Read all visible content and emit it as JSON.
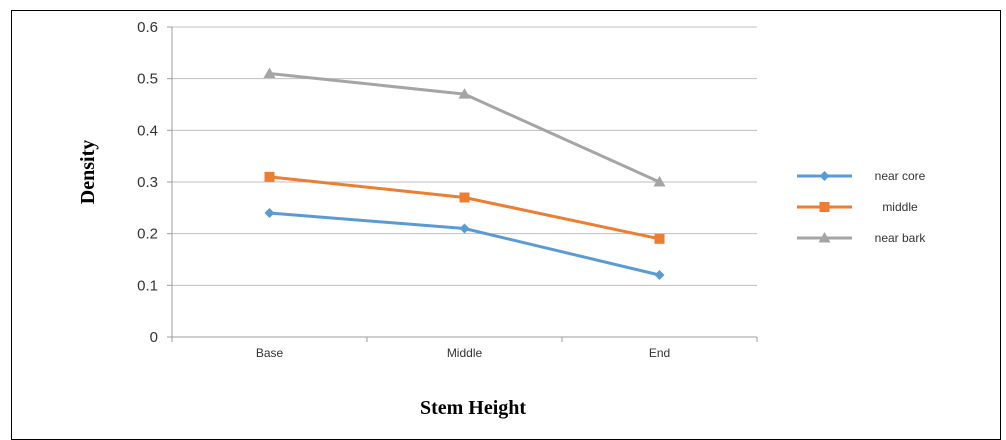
{
  "chart_data": {
    "type": "line",
    "categories": [
      "Base",
      "Middle",
      "End"
    ],
    "series": [
      {
        "name": "near core",
        "values": [
          0.24,
          0.21,
          0.12
        ],
        "color": "#5B9BD5",
        "marker": "diamond"
      },
      {
        "name": "middle",
        "values": [
          0.31,
          0.27,
          0.19
        ],
        "color": "#ED7D31",
        "marker": "square"
      },
      {
        "name": "near bark",
        "values": [
          0.51,
          0.47,
          0.3
        ],
        "color": "#A5A5A5",
        "marker": "triangle"
      }
    ],
    "xlabel": "Stem Height",
    "ylabel": "Density",
    "ylim": [
      0,
      0.6
    ],
    "yticks": [
      "0",
      "0.1",
      "0.2",
      "0.3",
      "0.4",
      "0.5",
      "0.6"
    ],
    "grid": true,
    "legend": "right"
  }
}
